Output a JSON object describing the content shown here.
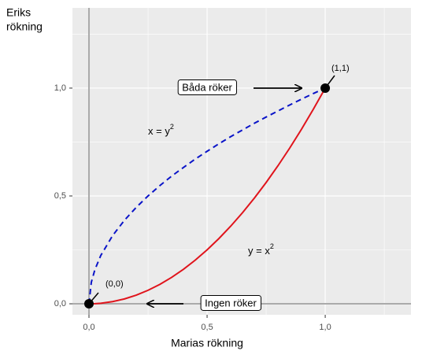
{
  "chart_data": {
    "type": "line",
    "x_label": "Marias rökning",
    "y_label": [
      "Eriks",
      "rökning"
    ],
    "x": [
      0,
      0.01,
      0.025,
      0.05,
      0.1,
      0.15,
      0.2,
      0.25,
      0.3,
      0.35,
      0.4,
      0.45,
      0.5,
      0.55,
      0.6,
      0.65,
      0.7,
      0.75,
      0.8,
      0.85,
      0.9,
      0.95,
      1
    ],
    "series": [
      {
        "color": "#e0141c",
        "dashed": false,
        "values": [
          0,
          0.0001,
          0.000625,
          0.0025,
          0.01,
          0.0225,
          0.04,
          0.0625,
          0.09,
          0.1225,
          0.16,
          0.2025,
          0.25,
          0.3025,
          0.36,
          0.4225,
          0.49,
          0.5625,
          0.64,
          0.7225,
          0.81,
          0.9025,
          1
        ]
      },
      {
        "color": "#0a14c8",
        "dashed": true,
        "values": [
          0,
          0.1,
          0.158,
          0.224,
          0.316,
          0.387,
          0.447,
          0.5,
          0.548,
          0.592,
          0.632,
          0.671,
          0.707,
          0.742,
          0.775,
          0.806,
          0.837,
          0.866,
          0.894,
          0.922,
          0.949,
          0.975,
          1
        ]
      }
    ],
    "points": [
      {
        "x": 0,
        "y": 0,
        "label": "(0,0)"
      },
      {
        "x": 1,
        "y": 1,
        "label": "(1,1)"
      }
    ],
    "curve_labels": [
      {
        "text": "x = y",
        "sup": "2"
      },
      {
        "text": "y = x",
        "sup": "2"
      }
    ],
    "box_labels": [
      "Båda röker",
      "Ingen röker"
    ],
    "xlim": [
      -0.07,
      1.363
    ],
    "ylim": [
      -0.051,
      1.372
    ],
    "xticks": [
      {
        "value": 0,
        "label": "0,0"
      },
      {
        "value": 0.5,
        "label": "0,5"
      },
      {
        "value": 1,
        "label": "1,0"
      }
    ],
    "yticks": [
      {
        "value": 0,
        "label": "0,0"
      },
      {
        "value": 0.5,
        "label": "0,5"
      },
      {
        "value": 1,
        "label": "1,0"
      }
    ],
    "minor_ticks": [
      0.25,
      0.75,
      1.25
    ],
    "grid": true
  }
}
